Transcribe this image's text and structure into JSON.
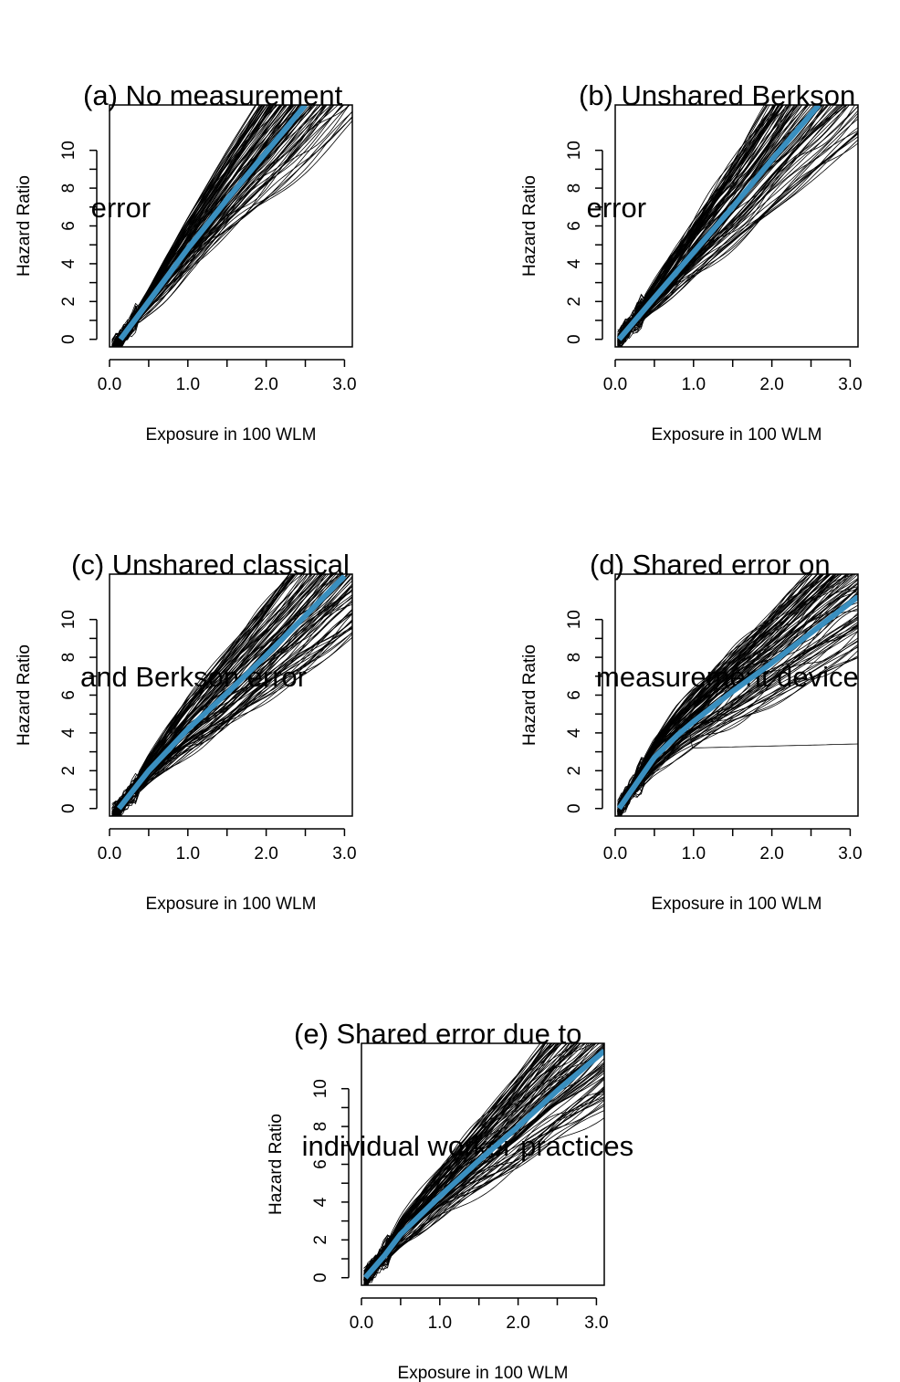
{
  "chart_data": [
    {
      "type": "line",
      "title_lines": [
        "(a) No measurement",
        " error"
      ],
      "xlabel": "Exposure in 100 WLM",
      "ylabel": "Hazard Ratio",
      "xlim": [
        0,
        3.1
      ],
      "ylim": [
        -0.4,
        12.4
      ],
      "xticks": [
        "0.0",
        "1.0",
        "2.0",
        "3.0"
      ],
      "yticks": [
        "0",
        "2",
        "4",
        "6",
        "8",
        "10"
      ],
      "grid": false,
      "background_curves": {
        "count": 100,
        "color": "#000000"
      },
      "series": [
        {
          "x": [
            0.14,
            0.5,
            1.0,
            1.5,
            2.0,
            2.5
          ],
          "y": [
            0,
            2.0,
            4.8,
            7.4,
            9.9,
            12.4
          ],
          "color": "#3a8fbf"
        }
      ]
    },
    {
      "type": "line",
      "title_lines": [
        "(b) Unshared Berkson",
        " error"
      ],
      "xlabel": "Exposure in 100 WLM",
      "ylabel": "Hazard Ratio",
      "xlim": [
        0,
        3.1
      ],
      "ylim": [
        -0.4,
        12.4
      ],
      "xticks": [
        "0.0",
        "1.0",
        "2.0",
        "3.0"
      ],
      "yticks": [
        "0",
        "2",
        "4",
        "6",
        "8",
        "10"
      ],
      "grid": false,
      "background_curves": {
        "count": 100,
        "color": "#000000"
      },
      "series": [
        {
          "x": [
            0.05,
            0.5,
            1.0,
            1.5,
            2.0,
            2.6
          ],
          "y": [
            0,
            2.2,
            4.6,
            7.0,
            9.5,
            12.4
          ],
          "color": "#3a8fbf"
        }
      ]
    },
    {
      "type": "line",
      "title_lines": [
        "(c) Unshared classical",
        "and Berkson error"
      ],
      "xlabel": "Exposure in 100 WLM",
      "ylabel": "Hazard Ratio",
      "xlim": [
        0,
        3.1
      ],
      "ylim": [
        -0.4,
        12.4
      ],
      "xticks": [
        "0.0",
        "1.0",
        "2.0",
        "3.0"
      ],
      "yticks": [
        "0",
        "2",
        "4",
        "6",
        "8",
        "10"
      ],
      "grid": false,
      "background_curves": {
        "count": 100,
        "color": "#000000"
      },
      "series": [
        {
          "x": [
            0.12,
            0.5,
            1.0,
            1.5,
            2.0,
            2.5,
            3.0
          ],
          "y": [
            0,
            2.0,
            4.2,
            6.1,
            8.1,
            10.2,
            12.3
          ],
          "color": "#3a8fbf"
        }
      ]
    },
    {
      "type": "line",
      "title_lines": [
        "(d) Shared error on",
        "measurement device"
      ],
      "xlabel": "Exposure in 100 WLM",
      "ylabel": "Hazard Ratio",
      "xlim": [
        0,
        3.1
      ],
      "ylim": [
        -0.4,
        12.4
      ],
      "xticks": [
        "0.0",
        "1.0",
        "2.0",
        "3.0"
      ],
      "yticks": [
        "0",
        "2",
        "4",
        "6",
        "8",
        "10"
      ],
      "grid": false,
      "background_curves": {
        "count": 100,
        "color": "#000000"
      },
      "series": [
        {
          "x": [
            0.05,
            0.3,
            0.5,
            0.8,
            1.0,
            1.5,
            2.0,
            2.5,
            3.1
          ],
          "y": [
            0,
            1.5,
            2.7,
            3.9,
            4.6,
            6.2,
            7.7,
            9.3,
            11.2
          ],
          "color": "#3a8fbf"
        }
      ]
    },
    {
      "type": "line",
      "title_lines": [
        "(e) Shared error due to",
        " individual worker practices"
      ],
      "xlabel": "Exposure in 100 WLM",
      "ylabel": "Hazard Ratio",
      "xlim": [
        0,
        3.1
      ],
      "ylim": [
        -0.4,
        12.4
      ],
      "xticks": [
        "0.0",
        "1.0",
        "2.0",
        "3.0"
      ],
      "yticks": [
        "0",
        "2",
        "4",
        "6",
        "8",
        "10"
      ],
      "grid": false,
      "background_curves": {
        "count": 100,
        "color": "#000000"
      },
      "series": [
        {
          "x": [
            0.05,
            0.3,
            0.5,
            1.0,
            1.5,
            2.0,
            2.5,
            3.1
          ],
          "y": [
            0,
            1.2,
            2.3,
            4.3,
            6.2,
            8.0,
            9.9,
            12.0
          ],
          "color": "#3a8fbf"
        }
      ]
    }
  ]
}
